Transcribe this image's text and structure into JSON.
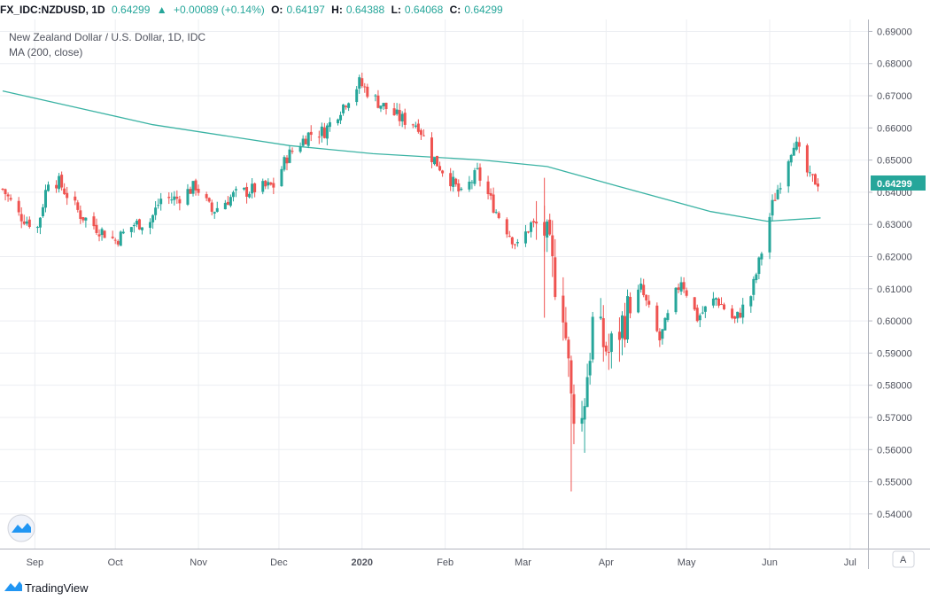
{
  "header": {
    "symbol": "FX_IDC:NZDUSD, 1D",
    "last": "0.64299",
    "arrow": "▲",
    "change": "+0.00089 (+0.14%)",
    "o_label": "O:",
    "o_value": "0.64197",
    "h_label": "H:",
    "h_value": "0.64388",
    "l_label": "L:",
    "l_value": "0.64068",
    "c_label": "C:",
    "c_value": "0.64299"
  },
  "legend": {
    "title": "New Zealand Dollar / U.S. Dollar, 1D, IDC",
    "indicator": "MA (200, close)"
  },
  "price_tag": "0.64299",
  "corner_button": "A",
  "footer": {
    "brand": "TradingView"
  },
  "colors": {
    "up": "#26a69a",
    "down": "#ef5350",
    "ma": "#3bb3a4",
    "grid": "#eceef2",
    "axis_text": "#50535e"
  },
  "chart_data": {
    "type": "candlestick",
    "title": "New Zealand Dollar / U.S. Dollar, 1D, IDC",
    "ylim": [
      0.535,
      0.6915
    ],
    "y_ticks": [
      "0.54000",
      "0.55000",
      "0.56000",
      "0.57000",
      "0.58000",
      "0.59000",
      "0.60000",
      "0.61000",
      "0.62000",
      "0.63000",
      "0.64000",
      "0.65000",
      "0.66000",
      "0.67000",
      "0.68000",
      "0.69000"
    ],
    "x_ticks": [
      "Sep",
      "Oct",
      "Nov",
      "Dec",
      "2020",
      "Feb",
      "Mar",
      "Apr",
      "May",
      "Jun",
      "Jul"
    ],
    "close_path": [
      {
        "d": "2019-08-20",
        "v": 0.641
      },
      {
        "d": "2019-08-26",
        "v": 0.633
      },
      {
        "d": "2019-09-02",
        "v": 0.629
      },
      {
        "d": "2019-09-06",
        "v": 0.644
      },
      {
        "d": "2019-09-10",
        "v": 0.643
      },
      {
        "d": "2019-09-18",
        "v": 0.633
      },
      {
        "d": "2019-09-24",
        "v": 0.629
      },
      {
        "d": "2019-10-01",
        "v": 0.625
      },
      {
        "d": "2019-10-08",
        "v": 0.63
      },
      {
        "d": "2019-10-14",
        "v": 0.631
      },
      {
        "d": "2019-10-18",
        "v": 0.638
      },
      {
        "d": "2019-10-24",
        "v": 0.638
      },
      {
        "d": "2019-10-31",
        "v": 0.642
      },
      {
        "d": "2019-11-06",
        "v": 0.634
      },
      {
        "d": "2019-11-14",
        "v": 0.639
      },
      {
        "d": "2019-11-22",
        "v": 0.641
      },
      {
        "d": "2019-11-29",
        "v": 0.642
      },
      {
        "d": "2019-12-04",
        "v": 0.651
      },
      {
        "d": "2019-12-12",
        "v": 0.658
      },
      {
        "d": "2019-12-18",
        "v": 0.659
      },
      {
        "d": "2019-12-24",
        "v": 0.666
      },
      {
        "d": "2019-12-31",
        "v": 0.674
      },
      {
        "d": "2020-01-07",
        "v": 0.668
      },
      {
        "d": "2020-01-15",
        "v": 0.663
      },
      {
        "d": "2020-01-22",
        "v": 0.661
      },
      {
        "d": "2020-01-27",
        "v": 0.651
      },
      {
        "d": "2020-02-03",
        "v": 0.644
      },
      {
        "d": "2020-02-07",
        "v": 0.639
      },
      {
        "d": "2020-02-13",
        "v": 0.646
      },
      {
        "d": "2020-02-20",
        "v": 0.634
      },
      {
        "d": "2020-02-28",
        "v": 0.623
      },
      {
        "d": "2020-03-04",
        "v": 0.63
      },
      {
        "d": "2020-03-09",
        "v": 0.628
      },
      {
        "d": "2020-03-12",
        "v": 0.616
      },
      {
        "d": "2020-03-16",
        "v": 0.605
      },
      {
        "d": "2020-03-19",
        "v": 0.575
      },
      {
        "d": "2020-03-23",
        "v": 0.569
      },
      {
        "d": "2020-03-27",
        "v": 0.599
      },
      {
        "d": "2020-04-02",
        "v": 0.59
      },
      {
        "d": "2020-04-08",
        "v": 0.601
      },
      {
        "d": "2020-04-14",
        "v": 0.61
      },
      {
        "d": "2020-04-21",
        "v": 0.594
      },
      {
        "d": "2020-04-29",
        "v": 0.613
      },
      {
        "d": "2020-05-05",
        "v": 0.601
      },
      {
        "d": "2020-05-12",
        "v": 0.607
      },
      {
        "d": "2020-05-19",
        "v": 0.6
      },
      {
        "d": "2020-05-25",
        "v": 0.608
      },
      {
        "d": "2020-05-28",
        "v": 0.618
      },
      {
        "d": "2020-06-02",
        "v": 0.636
      },
      {
        "d": "2020-06-10",
        "v": 0.656
      },
      {
        "d": "2020-06-16",
        "v": 0.644
      },
      {
        "d": "2020-06-20",
        "v": 0.643
      }
    ],
    "ma_200": [
      {
        "d": "2019-08-20",
        "v": 0.6715
      },
      {
        "d": "2019-10-15",
        "v": 0.661
      },
      {
        "d": "2019-12-05",
        "v": 0.6545
      },
      {
        "d": "2020-01-05",
        "v": 0.652
      },
      {
        "d": "2020-02-15",
        "v": 0.65
      },
      {
        "d": "2020-03-10",
        "v": 0.648
      },
      {
        "d": "2020-04-05",
        "v": 0.642
      },
      {
        "d": "2020-05-10",
        "v": 0.634
      },
      {
        "d": "2020-05-31",
        "v": 0.631
      },
      {
        "d": "2020-06-20",
        "v": 0.632
      }
    ],
    "last_price": 0.64299
  }
}
